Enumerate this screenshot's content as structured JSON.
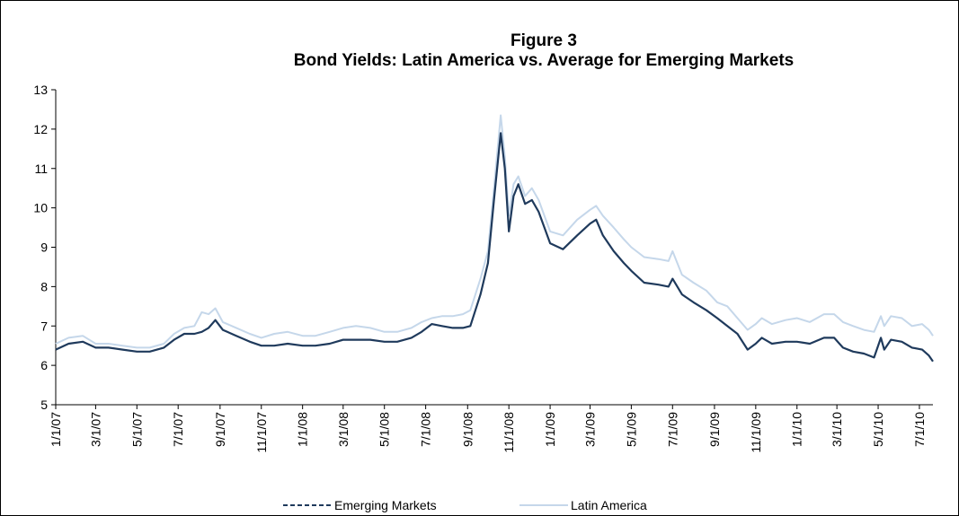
{
  "chart_data": {
    "type": "line",
    "title": "Figure 3",
    "subtitle": "Bond Yields: Latin America vs. Average for Emerging Markets",
    "xlabel": "",
    "ylabel": "",
    "ylim": [
      5,
      13
    ],
    "yticks": [
      5,
      6,
      7,
      8,
      9,
      10,
      11,
      12,
      13
    ],
    "xlim": [
      "2007-01-01",
      "2010-07-21"
    ],
    "xtick_dates": [
      "2007-01-01",
      "2007-03-01",
      "2007-05-01",
      "2007-07-01",
      "2007-09-01",
      "2007-11-01",
      "2008-01-01",
      "2008-03-01",
      "2008-05-01",
      "2008-07-01",
      "2008-09-01",
      "2008-11-01",
      "2009-01-01",
      "2009-03-01",
      "2009-05-01",
      "2009-07-01",
      "2009-09-01",
      "2009-11-01",
      "2010-01-01",
      "2010-03-01",
      "2010-05-01",
      "2010-07-01"
    ],
    "xtick_labels": [
      "1/1/07",
      "3/1/07",
      "5/1/07",
      "7/1/07",
      "9/1/07",
      "11/1/07",
      "1/1/08",
      "3/1/08",
      "5/1/08",
      "7/1/08",
      "9/1/08",
      "11/1/08",
      "1/1/09",
      "3/1/09",
      "5/1/09",
      "7/1/09",
      "9/1/09",
      "11/1/09",
      "1/1/10",
      "3/1/10",
      "5/1/10",
      "7/1/10"
    ],
    "grid": false,
    "legend_position": "bottom",
    "series": [
      {
        "name": "Emerging Markets",
        "color": "#1f3a5c",
        "style": "dashed",
        "points": [
          [
            "2007-01-01",
            6.4
          ],
          [
            "2007-01-20",
            6.55
          ],
          [
            "2007-02-10",
            6.6
          ],
          [
            "2007-03-01",
            6.45
          ],
          [
            "2007-03-20",
            6.45
          ],
          [
            "2007-04-10",
            6.4
          ],
          [
            "2007-05-01",
            6.35
          ],
          [
            "2007-05-20",
            6.35
          ],
          [
            "2007-06-10",
            6.45
          ],
          [
            "2007-06-25",
            6.65
          ],
          [
            "2007-07-10",
            6.8
          ],
          [
            "2007-07-25",
            6.8
          ],
          [
            "2007-08-05",
            6.85
          ],
          [
            "2007-08-15",
            6.95
          ],
          [
            "2007-08-25",
            7.15
          ],
          [
            "2007-09-05",
            6.9
          ],
          [
            "2007-09-25",
            6.75
          ],
          [
            "2007-10-15",
            6.6
          ],
          [
            "2007-11-01",
            6.5
          ],
          [
            "2007-11-20",
            6.5
          ],
          [
            "2007-12-10",
            6.55
          ],
          [
            "2008-01-01",
            6.5
          ],
          [
            "2008-01-20",
            6.5
          ],
          [
            "2008-02-10",
            6.55
          ],
          [
            "2008-03-01",
            6.65
          ],
          [
            "2008-03-20",
            6.65
          ],
          [
            "2008-04-10",
            6.65
          ],
          [
            "2008-05-01",
            6.6
          ],
          [
            "2008-05-20",
            6.6
          ],
          [
            "2008-06-10",
            6.7
          ],
          [
            "2008-06-25",
            6.85
          ],
          [
            "2008-07-10",
            7.05
          ],
          [
            "2008-07-25",
            7.0
          ],
          [
            "2008-08-10",
            6.95
          ],
          [
            "2008-08-25",
            6.95
          ],
          [
            "2008-09-05",
            7.0
          ],
          [
            "2008-09-20",
            7.8
          ],
          [
            "2008-10-01",
            8.6
          ],
          [
            "2008-10-10",
            10.2
          ],
          [
            "2008-10-20",
            11.9
          ],
          [
            "2008-10-26",
            11.0
          ],
          [
            "2008-11-01",
            9.4
          ],
          [
            "2008-11-08",
            10.3
          ],
          [
            "2008-11-15",
            10.6
          ],
          [
            "2008-11-25",
            10.1
          ],
          [
            "2008-12-05",
            10.2
          ],
          [
            "2008-12-15",
            9.9
          ],
          [
            "2009-01-01",
            9.1
          ],
          [
            "2009-01-20",
            8.95
          ],
          [
            "2009-02-10",
            9.3
          ],
          [
            "2009-03-01",
            9.6
          ],
          [
            "2009-03-10",
            9.7
          ],
          [
            "2009-03-20",
            9.3
          ],
          [
            "2009-04-05",
            8.9
          ],
          [
            "2009-04-20",
            8.6
          ],
          [
            "2009-05-01",
            8.4
          ],
          [
            "2009-05-20",
            8.1
          ],
          [
            "2009-06-10",
            8.05
          ],
          [
            "2009-06-25",
            8.0
          ],
          [
            "2009-07-01",
            8.2
          ],
          [
            "2009-07-15",
            7.8
          ],
          [
            "2009-08-01",
            7.6
          ],
          [
            "2009-08-20",
            7.4
          ],
          [
            "2009-09-05",
            7.2
          ],
          [
            "2009-09-20",
            7.0
          ],
          [
            "2009-10-05",
            6.8
          ],
          [
            "2009-10-20",
            6.4
          ],
          [
            "2009-11-01",
            6.55
          ],
          [
            "2009-11-10",
            6.7
          ],
          [
            "2009-11-25",
            6.55
          ],
          [
            "2009-12-15",
            6.6
          ],
          [
            "2010-01-01",
            6.6
          ],
          [
            "2010-01-20",
            6.55
          ],
          [
            "2010-02-10",
            6.7
          ],
          [
            "2010-02-25",
            6.7
          ],
          [
            "2010-03-10",
            6.45
          ],
          [
            "2010-03-25",
            6.35
          ],
          [
            "2010-04-10",
            6.3
          ],
          [
            "2010-04-25",
            6.2
          ],
          [
            "2010-05-05",
            6.7
          ],
          [
            "2010-05-10",
            6.4
          ],
          [
            "2010-05-20",
            6.65
          ],
          [
            "2010-06-05",
            6.6
          ],
          [
            "2010-06-20",
            6.45
          ],
          [
            "2010-07-05",
            6.4
          ],
          [
            "2010-07-15",
            6.25
          ],
          [
            "2010-07-21",
            6.1
          ]
        ]
      },
      {
        "name": "Latin America",
        "color": "#c5d7ea",
        "style": "solid",
        "points": [
          [
            "2007-01-01",
            6.55
          ],
          [
            "2007-01-20",
            6.7
          ],
          [
            "2007-02-10",
            6.75
          ],
          [
            "2007-03-01",
            6.55
          ],
          [
            "2007-03-20",
            6.55
          ],
          [
            "2007-04-10",
            6.5
          ],
          [
            "2007-05-01",
            6.45
          ],
          [
            "2007-05-20",
            6.45
          ],
          [
            "2007-06-10",
            6.55
          ],
          [
            "2007-06-25",
            6.8
          ],
          [
            "2007-07-10",
            6.95
          ],
          [
            "2007-07-25",
            7.0
          ],
          [
            "2007-08-05",
            7.35
          ],
          [
            "2007-08-15",
            7.3
          ],
          [
            "2007-08-25",
            7.45
          ],
          [
            "2007-09-05",
            7.1
          ],
          [
            "2007-09-25",
            6.95
          ],
          [
            "2007-10-15",
            6.8
          ],
          [
            "2007-11-01",
            6.7
          ],
          [
            "2007-11-20",
            6.8
          ],
          [
            "2007-12-10",
            6.85
          ],
          [
            "2008-01-01",
            6.75
          ],
          [
            "2008-01-20",
            6.75
          ],
          [
            "2008-02-10",
            6.85
          ],
          [
            "2008-03-01",
            6.95
          ],
          [
            "2008-03-20",
            7.0
          ],
          [
            "2008-04-10",
            6.95
          ],
          [
            "2008-05-01",
            6.85
          ],
          [
            "2008-05-20",
            6.85
          ],
          [
            "2008-06-10",
            6.95
          ],
          [
            "2008-06-25",
            7.1
          ],
          [
            "2008-07-10",
            7.2
          ],
          [
            "2008-07-25",
            7.25
          ],
          [
            "2008-08-10",
            7.25
          ],
          [
            "2008-08-25",
            7.3
          ],
          [
            "2008-09-05",
            7.4
          ],
          [
            "2008-09-20",
            8.2
          ],
          [
            "2008-10-01",
            8.9
          ],
          [
            "2008-10-10",
            10.5
          ],
          [
            "2008-10-20",
            12.35
          ],
          [
            "2008-10-26",
            11.3
          ],
          [
            "2008-11-01",
            9.8
          ],
          [
            "2008-11-08",
            10.6
          ],
          [
            "2008-11-15",
            10.8
          ],
          [
            "2008-11-25",
            10.3
          ],
          [
            "2008-12-05",
            10.5
          ],
          [
            "2008-12-15",
            10.2
          ],
          [
            "2009-01-01",
            9.4
          ],
          [
            "2009-01-20",
            9.3
          ],
          [
            "2009-02-10",
            9.7
          ],
          [
            "2009-03-01",
            9.95
          ],
          [
            "2009-03-10",
            10.05
          ],
          [
            "2009-03-20",
            9.8
          ],
          [
            "2009-04-05",
            9.5
          ],
          [
            "2009-04-20",
            9.2
          ],
          [
            "2009-05-01",
            9.0
          ],
          [
            "2009-05-20",
            8.75
          ],
          [
            "2009-06-10",
            8.7
          ],
          [
            "2009-06-25",
            8.65
          ],
          [
            "2009-07-01",
            8.9
          ],
          [
            "2009-07-15",
            8.3
          ],
          [
            "2009-08-01",
            8.1
          ],
          [
            "2009-08-20",
            7.9
          ],
          [
            "2009-09-05",
            7.6
          ],
          [
            "2009-09-20",
            7.5
          ],
          [
            "2009-10-05",
            7.2
          ],
          [
            "2009-10-20",
            6.9
          ],
          [
            "2009-11-01",
            7.05
          ],
          [
            "2009-11-10",
            7.2
          ],
          [
            "2009-11-25",
            7.05
          ],
          [
            "2009-12-15",
            7.15
          ],
          [
            "2010-01-01",
            7.2
          ],
          [
            "2010-01-20",
            7.1
          ],
          [
            "2010-02-10",
            7.3
          ],
          [
            "2010-02-25",
            7.3
          ],
          [
            "2010-03-10",
            7.1
          ],
          [
            "2010-03-25",
            7.0
          ],
          [
            "2010-04-10",
            6.9
          ],
          [
            "2010-04-25",
            6.85
          ],
          [
            "2010-05-05",
            7.25
          ],
          [
            "2010-05-10",
            7.0
          ],
          [
            "2010-05-20",
            7.25
          ],
          [
            "2010-06-05",
            7.2
          ],
          [
            "2010-06-20",
            7.0
          ],
          [
            "2010-07-05",
            7.05
          ],
          [
            "2010-07-15",
            6.9
          ],
          [
            "2010-07-21",
            6.75
          ]
        ]
      }
    ]
  }
}
